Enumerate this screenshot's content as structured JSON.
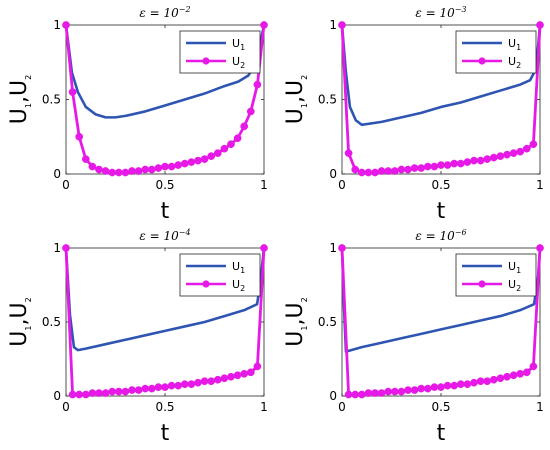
{
  "colors": {
    "u1": "#2f55b3",
    "u2": "#e619e6"
  },
  "chart_data": [
    {
      "type": "line",
      "title_prefix": "ε = 10",
      "title_exp": "−2",
      "xlabel": "t",
      "ylabel": {
        "base1": "U",
        "sub1": "1",
        "sep": ",",
        "base2": "U",
        "sub2": "2"
      },
      "xlim": [
        0,
        1
      ],
      "ylim": [
        0,
        1
      ],
      "xticks": [
        0,
        0.5,
        1
      ],
      "xticklabels": [
        "0",
        "0.5",
        "1"
      ],
      "yticks": [
        0,
        0.5,
        1
      ],
      "yticklabels": [
        "0",
        "0.5",
        "1"
      ],
      "legend": {
        "position": "top-right"
      },
      "series": [
        {
          "name_base": "U",
          "name_sub": "1",
          "markers": false,
          "x": [
            0,
            0.03,
            0.06,
            0.1,
            0.15,
            0.2,
            0.25,
            0.3,
            0.4,
            0.5,
            0.6,
            0.7,
            0.8,
            0.87,
            0.92,
            0.96,
            1
          ],
          "y": [
            1,
            0.68,
            0.55,
            0.45,
            0.4,
            0.38,
            0.38,
            0.39,
            0.42,
            0.46,
            0.5,
            0.54,
            0.59,
            0.62,
            0.66,
            0.74,
            1
          ]
        },
        {
          "name_base": "U",
          "name_sub": "2",
          "markers": true,
          "x": [
            0,
            0.0333,
            0.0667,
            0.1,
            0.1333,
            0.1667,
            0.2,
            0.2333,
            0.2667,
            0.3,
            0.3333,
            0.3667,
            0.4,
            0.4333,
            0.4667,
            0.5,
            0.5333,
            0.5667,
            0.6,
            0.6333,
            0.6667,
            0.7,
            0.7333,
            0.7667,
            0.8,
            0.8333,
            0.8667,
            0.9,
            0.9333,
            0.9667,
            1
          ],
          "y": [
            1,
            0.55,
            0.25,
            0.1,
            0.05,
            0.03,
            0.02,
            0.01,
            0.01,
            0.01,
            0.02,
            0.02,
            0.03,
            0.03,
            0.04,
            0.05,
            0.05,
            0.06,
            0.07,
            0.08,
            0.09,
            0.1,
            0.12,
            0.14,
            0.17,
            0.2,
            0.24,
            0.32,
            0.42,
            0.6,
            1
          ]
        }
      ]
    },
    {
      "type": "line",
      "title_prefix": "ε = 10",
      "title_exp": "−3",
      "xlabel": "t",
      "ylabel": {
        "base1": "U",
        "sub1": "1",
        "sep": ",",
        "base2": "U",
        "sub2": "2"
      },
      "xlim": [
        0,
        1
      ],
      "ylim": [
        0,
        1
      ],
      "xticks": [
        0,
        0.5,
        1
      ],
      "xticklabels": [
        "0",
        "0.5",
        "1"
      ],
      "yticks": [
        0,
        0.5,
        1
      ],
      "yticklabels": [
        "0",
        "0.5",
        "1"
      ],
      "legend": {
        "position": "top-right"
      },
      "series": [
        {
          "name_base": "U",
          "name_sub": "1",
          "markers": false,
          "x": [
            0,
            0.02,
            0.04,
            0.07,
            0.1,
            0.2,
            0.3,
            0.4,
            0.5,
            0.6,
            0.7,
            0.8,
            0.9,
            0.95,
            0.97,
            0.99,
            1
          ],
          "y": [
            1,
            0.68,
            0.45,
            0.36,
            0.33,
            0.35,
            0.38,
            0.41,
            0.45,
            0.48,
            0.52,
            0.56,
            0.6,
            0.63,
            0.68,
            0.85,
            1
          ]
        },
        {
          "name_base": "U",
          "name_sub": "2",
          "markers": true,
          "x": [
            0,
            0.0333,
            0.0667,
            0.1,
            0.1333,
            0.1667,
            0.2,
            0.2333,
            0.2667,
            0.3,
            0.3333,
            0.3667,
            0.4,
            0.4333,
            0.4667,
            0.5,
            0.5333,
            0.5667,
            0.6,
            0.6333,
            0.6667,
            0.7,
            0.7333,
            0.7667,
            0.8,
            0.8333,
            0.8667,
            0.9,
            0.9333,
            0.9667,
            1
          ],
          "y": [
            1,
            0.14,
            0.03,
            0.01,
            0.01,
            0.01,
            0.02,
            0.02,
            0.02,
            0.03,
            0.03,
            0.04,
            0.04,
            0.05,
            0.05,
            0.06,
            0.06,
            0.07,
            0.07,
            0.08,
            0.09,
            0.09,
            0.1,
            0.11,
            0.12,
            0.13,
            0.14,
            0.15,
            0.17,
            0.2,
            1
          ]
        }
      ]
    },
    {
      "type": "line",
      "title_prefix": "ε = 10",
      "title_exp": "−4",
      "xlabel": "t",
      "ylabel": {
        "base1": "U",
        "sub1": "1",
        "sep": ",",
        "base2": "U",
        "sub2": "2"
      },
      "xlim": [
        0,
        1
      ],
      "ylim": [
        0,
        1
      ],
      "xticks": [
        0,
        0.5,
        1
      ],
      "xticklabels": [
        "0",
        "0.5",
        "1"
      ],
      "yticks": [
        0,
        0.5,
        1
      ],
      "yticklabels": [
        "0",
        "0.5",
        "1"
      ],
      "legend": {
        "position": "top-right"
      },
      "series": [
        {
          "name_base": "U",
          "name_sub": "1",
          "markers": false,
          "x": [
            0,
            0.02,
            0.04,
            0.06,
            0.1,
            0.2,
            0.3,
            0.4,
            0.5,
            0.6,
            0.7,
            0.8,
            0.9,
            0.965,
            0.98,
            1
          ],
          "y": [
            1,
            0.55,
            0.33,
            0.31,
            0.32,
            0.35,
            0.38,
            0.41,
            0.44,
            0.47,
            0.5,
            0.54,
            0.58,
            0.62,
            0.75,
            1
          ]
        },
        {
          "name_base": "U",
          "name_sub": "2",
          "markers": true,
          "x": [
            0,
            0.0333,
            0.0667,
            0.1,
            0.1333,
            0.1667,
            0.2,
            0.2333,
            0.2667,
            0.3,
            0.3333,
            0.3667,
            0.4,
            0.4333,
            0.4667,
            0.5,
            0.5333,
            0.5667,
            0.6,
            0.6333,
            0.6667,
            0.7,
            0.7333,
            0.7667,
            0.8,
            0.8333,
            0.8667,
            0.9,
            0.9333,
            0.9667,
            1
          ],
          "y": [
            1,
            0.01,
            0.01,
            0.01,
            0.02,
            0.02,
            0.02,
            0.03,
            0.03,
            0.03,
            0.04,
            0.04,
            0.05,
            0.05,
            0.06,
            0.06,
            0.07,
            0.07,
            0.08,
            0.08,
            0.09,
            0.1,
            0.1,
            0.11,
            0.12,
            0.13,
            0.14,
            0.15,
            0.16,
            0.2,
            1
          ]
        }
      ]
    },
    {
      "type": "line",
      "title_prefix": "ε = 10",
      "title_exp": "−6",
      "xlabel": "t",
      "ylabel": {
        "base1": "U",
        "sub1": "1",
        "sep": ",",
        "base2": "U",
        "sub2": "2"
      },
      "xlim": [
        0,
        1
      ],
      "ylim": [
        0,
        1
      ],
      "xticks": [
        0,
        0.5,
        1
      ],
      "xticklabels": [
        "0",
        "0.5",
        "1"
      ],
      "yticks": [
        0,
        0.5,
        1
      ],
      "yticklabels": [
        "0",
        "0.5",
        "1"
      ],
      "legend": {
        "position": "top-right"
      },
      "series": [
        {
          "name_base": "U",
          "name_sub": "1",
          "markers": false,
          "x": [
            0,
            0.01,
            0.02,
            0.1,
            0.2,
            0.3,
            0.4,
            0.5,
            0.6,
            0.7,
            0.8,
            0.9,
            0.97,
            0.99,
            1
          ],
          "y": [
            1,
            0.6,
            0.3,
            0.33,
            0.36,
            0.39,
            0.42,
            0.45,
            0.48,
            0.51,
            0.54,
            0.58,
            0.62,
            0.8,
            1
          ]
        },
        {
          "name_base": "U",
          "name_sub": "2",
          "markers": true,
          "x": [
            0,
            0.0333,
            0.0667,
            0.1,
            0.1333,
            0.1667,
            0.2,
            0.2333,
            0.2667,
            0.3,
            0.3333,
            0.3667,
            0.4,
            0.4333,
            0.4667,
            0.5,
            0.5333,
            0.5667,
            0.6,
            0.6333,
            0.6667,
            0.7,
            0.7333,
            0.7667,
            0.8,
            0.8333,
            0.8667,
            0.9,
            0.9333,
            0.9667,
            1
          ],
          "y": [
            1,
            0.01,
            0.01,
            0.01,
            0.02,
            0.02,
            0.02,
            0.03,
            0.03,
            0.03,
            0.04,
            0.04,
            0.05,
            0.05,
            0.06,
            0.06,
            0.07,
            0.07,
            0.08,
            0.08,
            0.09,
            0.1,
            0.1,
            0.11,
            0.12,
            0.13,
            0.14,
            0.15,
            0.16,
            0.2,
            1
          ]
        }
      ]
    }
  ]
}
